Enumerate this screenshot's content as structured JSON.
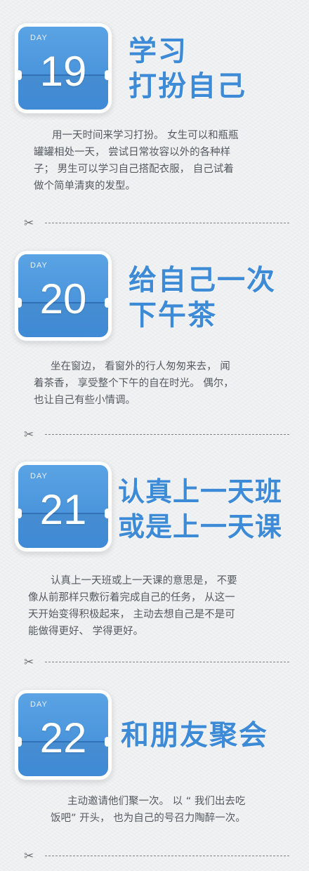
{
  "days": [
    {
      "label": "DAY",
      "number": "19",
      "title_lines": [
        "学习",
        "打扮自己"
      ],
      "body_lines": [
        "用一天时间来学习打扮。 女生可以和瓶瓶",
        "罐罐相处一天， 尝试日常妆容以外的各种样",
        "子； 男生可以学习自己搭配衣服， 自己试着",
        "做个简单清爽的发型。"
      ]
    },
    {
      "label": "DAY",
      "number": "20",
      "title_lines": [
        "给自己一次",
        "下午茶"
      ],
      "body_lines": [
        "坐在窗边， 看窗外的行人匆匆来去， 闻",
        "着茶香， 享受整个下午的自在时光。 偶尔，",
        "也让自己有些小情调。"
      ]
    },
    {
      "label": "DAY",
      "number": "21",
      "title_lines": [
        "认真上一天班",
        "或是上一天课"
      ],
      "body_lines": [
        "认真上一天班或上一天课的意思是， 不要",
        "像从前那样只敷衍着完成自己的任务， 从这一",
        "天开始变得积极起来， 主动去想自己是不是可",
        "能做得更好、 学得更好。"
      ]
    },
    {
      "label": "DAY",
      "number": "22",
      "title_lines": [
        "和朋友聚会"
      ],
      "body_lines": [
        "主动邀请他们聚一次。 以 “ 我们出去吃",
        "饭吧” 开头， 也为自己的号召力陶醉一次。"
      ]
    }
  ],
  "divider_icon": "scissors-icon",
  "accent_color": "#3d8bd6",
  "tile_color": "#4a96dd"
}
